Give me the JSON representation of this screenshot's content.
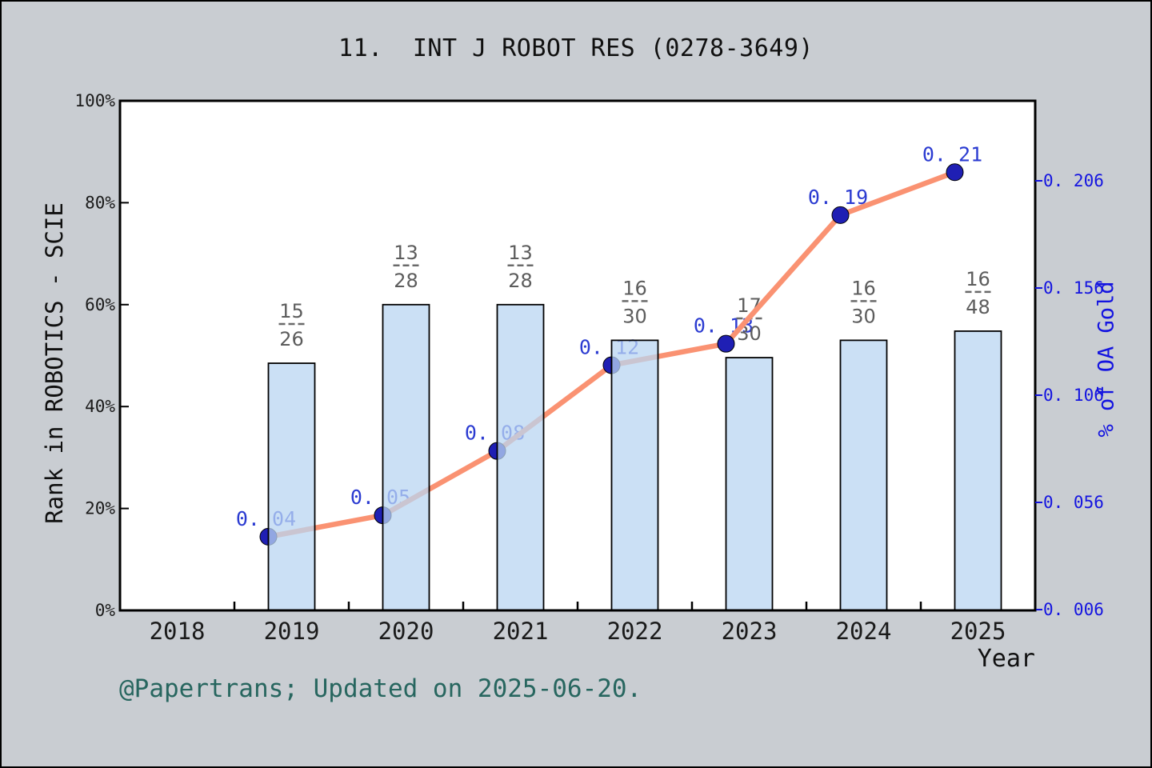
{
  "title": "11.  INT J ROBOT RES (0278-3649)",
  "footer": "@Papertrans; Updated on 2025-06-20.",
  "colors": {
    "background": "#c9cdd2",
    "plot_background": "#ffffff",
    "frame": "#000000",
    "bar_fill_rgba": "rgba(186,214,242,0.75)",
    "bar_stroke": "#000000",
    "line": "#fa9272",
    "marker_fill": "#1f1fb4",
    "marker_stroke": "#000000",
    "point_label_blue": "#2b3bd1",
    "right_axis_blue": "#1414e0",
    "fraction_gray": "#5c5c5c",
    "fraction_dash_gray": "#6a6a6a",
    "tick_label_black": "#1a1a1a",
    "footer_teal": "#27665f"
  },
  "chart_data": {
    "type": "bar+line",
    "title": "11.  INT J ROBOT RES (0278-3649)",
    "categories": [
      "2018",
      "2019",
      "2020",
      "2021",
      "2022",
      "2023",
      "2024",
      "2025"
    ],
    "bars": {
      "name": "Rank in ROBOTICS - SCIE",
      "categories": [
        "2019",
        "2020",
        "2021",
        "2022",
        "2023",
        "2024",
        "2025"
      ],
      "fractions": [
        {
          "numerator": "15",
          "denominator": "26"
        },
        {
          "numerator": "13",
          "denominator": "28"
        },
        {
          "numerator": "13",
          "denominator": "28"
        },
        {
          "numerator": "16",
          "denominator": "30"
        },
        {
          "numerator": "17",
          "denominator": "30"
        },
        {
          "numerator": "16",
          "denominator": "30"
        },
        {
          "numerator": "16",
          "denominator": "48"
        }
      ],
      "heights_pct": [
        48.5,
        60.0,
        60.0,
        53.0,
        49.6,
        53.0,
        54.8
      ]
    },
    "line": {
      "name": "% of OA Gold",
      "categories": [
        "2019",
        "2020",
        "2021",
        "2022",
        "2023",
        "2024",
        "2025"
      ],
      "values": [
        0.04,
        0.05,
        0.08,
        0.12,
        0.13,
        0.19,
        0.21
      ],
      "point_labels": [
        "0. 04",
        "0. 05",
        "0. 08",
        "0. 12",
        "0. 13",
        "0. 19",
        "0. 21"
      ]
    },
    "y_left": {
      "label": "Rank in ROBOTICS - SCIE",
      "ticks": [
        "0%",
        "20%",
        "40%",
        "60%",
        "80%",
        "100%"
      ],
      "tick_values": [
        0,
        20,
        40,
        60,
        80,
        100
      ],
      "range": [
        0,
        100
      ],
      "grid": false
    },
    "y_right": {
      "label": "% of OA Gold",
      "ticks": [
        "0. 006",
        "0. 056",
        "0. 106",
        "0. 156",
        "0. 206"
      ],
      "tick_values": [
        0.006,
        0.056,
        0.106,
        0.156,
        0.206
      ],
      "range": [
        0.006,
        0.2437
      ]
    },
    "x": {
      "label": "Year",
      "tick_labels": [
        "2018",
        "2019",
        "2020",
        "2021",
        "2022",
        "2023",
        "2024",
        "2025"
      ]
    },
    "legend_position": "none"
  }
}
